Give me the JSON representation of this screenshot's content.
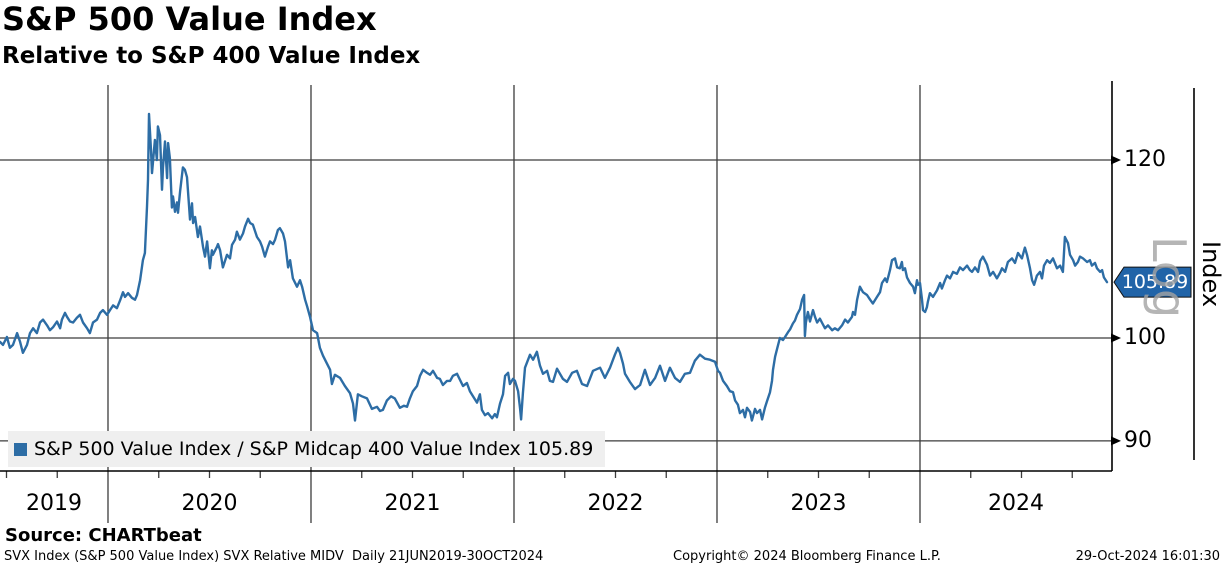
{
  "header": {
    "title": "S&P 500 Value Index",
    "subtitle": "Relative to S&P 400 Value Index"
  },
  "legend": {
    "label": "S&P 500 Value Index / S&P Midcap 400 Value Index 105.89"
  },
  "y_axis": {
    "title": "Index",
    "scale_label": "Log",
    "tick_labels": [
      "120",
      "100",
      "90"
    ],
    "badge": "105.89"
  },
  "x_axis": {
    "year_labels": [
      "2019",
      "2020",
      "2021",
      "2022",
      "2023",
      "2024"
    ]
  },
  "footer": {
    "source": "Source: CHARTbeat",
    "left": "SVX Index (S&P 500 Value Index) SVX Relative MIDV  Daily 21JUN2019-30OCT2024",
    "center": "Copyright© 2024 Bloomberg Finance L.P.",
    "right": "29-Oct-2024 16:01:30"
  },
  "colors": {
    "line": "#2d6da5",
    "badge": "#2164a8",
    "legend_bg": "#efefef",
    "grid": "#3c3c3c",
    "axis": "#000000",
    "watermark": "#a3a3a3"
  },
  "chart_data": {
    "type": "line",
    "title": "S&P 500 Value Index Relative to S&P 400 Value Index",
    "series_name": "S&P 500 Value Index / S&P Midcap 400 Value Index",
    "last_value": 105.89,
    "date_range": "21JUN2019-30OCT2024",
    "y_scale": "log",
    "ylabel": "Index",
    "y_ticks": [
      120,
      100,
      90
    ],
    "x_years": [
      2019,
      2020,
      2021,
      2022,
      2023,
      2024
    ],
    "x_domain": [
      2019.468,
      2024.921
    ],
    "points": [
      [
        2019.468,
        99.6
      ],
      [
        2019.483,
        99.3
      ],
      [
        2019.502,
        100.1
      ],
      [
        2019.517,
        99.0
      ],
      [
        2019.532,
        99.3
      ],
      [
        2019.552,
        100.5
      ],
      [
        2019.567,
        99.6
      ],
      [
        2019.581,
        98.5
      ],
      [
        2019.601,
        99.3
      ],
      [
        2019.616,
        100.5
      ],
      [
        2019.631,
        101.0
      ],
      [
        2019.65,
        100.5
      ],
      [
        2019.665,
        101.6
      ],
      [
        2019.68,
        101.9
      ],
      [
        2019.7,
        101.3
      ],
      [
        2019.714,
        100.8
      ],
      [
        2019.729,
        101.1
      ],
      [
        2019.749,
        101.7
      ],
      [
        2019.764,
        101.0
      ],
      [
        2019.773,
        101.9
      ],
      [
        2019.788,
        102.6
      ],
      [
        2019.798,
        102.2
      ],
      [
        2019.813,
        101.7
      ],
      [
        2019.828,
        101.6
      ],
      [
        2019.847,
        102.1
      ],
      [
        2019.862,
        102.4
      ],
      [
        2019.877,
        101.6
      ],
      [
        2019.897,
        101.0
      ],
      [
        2019.911,
        100.5
      ],
      [
        2019.926,
        101.6
      ],
      [
        2019.946,
        101.9
      ],
      [
        2019.961,
        102.6
      ],
      [
        2019.975,
        102.9
      ],
      [
        2019.995,
        102.4
      ],
      [
        2020.01,
        102.9
      ],
      [
        2020.025,
        103.4
      ],
      [
        2020.044,
        103.1
      ],
      [
        2020.059,
        103.9
      ],
      [
        2020.074,
        104.8
      ],
      [
        2020.084,
        104.3
      ],
      [
        2020.099,
        104.7
      ],
      [
        2020.118,
        104.2
      ],
      [
        2020.133,
        104.0
      ],
      [
        2020.143,
        104.5
      ],
      [
        2020.158,
        106.1
      ],
      [
        2020.172,
        108.3
      ],
      [
        2020.182,
        109.1
      ],
      [
        2020.192,
        114.4
      ],
      [
        2020.197,
        117.6
      ],
      [
        2020.202,
        125.8
      ],
      [
        2020.212,
        121.2
      ],
      [
        2020.217,
        118.4
      ],
      [
        2020.231,
        122.5
      ],
      [
        2020.241,
        120.0
      ],
      [
        2020.246,
        124.2
      ],
      [
        2020.256,
        123.1
      ],
      [
        2020.266,
        116.4
      ],
      [
        2020.271,
        119.1
      ],
      [
        2020.281,
        122.3
      ],
      [
        2020.291,
        117.8
      ],
      [
        2020.296,
        122.1
      ],
      [
        2020.305,
        120.2
      ],
      [
        2020.315,
        114.3
      ],
      [
        2020.32,
        115.6
      ],
      [
        2020.33,
        113.8
      ],
      [
        2020.34,
        114.9
      ],
      [
        2020.345,
        113.7
      ],
      [
        2020.355,
        116.2
      ],
      [
        2020.369,
        119.1
      ],
      [
        2020.379,
        118.8
      ],
      [
        2020.389,
        117.9
      ],
      [
        2020.404,
        112.9
      ],
      [
        2020.414,
        114.8
      ],
      [
        2020.419,
        112.5
      ],
      [
        2020.429,
        113.2
      ],
      [
        2020.443,
        110.9
      ],
      [
        2020.453,
        112.1
      ],
      [
        2020.468,
        109.8
      ],
      [
        2020.478,
        108.7
      ],
      [
        2020.488,
        110.4
      ],
      [
        2020.502,
        107.4
      ],
      [
        2020.512,
        109.4
      ],
      [
        2020.517,
        108.9
      ],
      [
        2020.537,
        109.8
      ],
      [
        2020.542,
        110.1
      ],
      [
        2020.552,
        109.4
      ],
      [
        2020.566,
        107.5
      ],
      [
        2020.586,
        108.9
      ],
      [
        2020.601,
        108.5
      ],
      [
        2020.611,
        110.0
      ],
      [
        2020.626,
        110.6
      ],
      [
        2020.635,
        111.5
      ],
      [
        2020.65,
        110.6
      ],
      [
        2020.665,
        111.3
      ],
      [
        2020.675,
        112.1
      ],
      [
        2020.69,
        113.0
      ],
      [
        2020.7,
        112.5
      ],
      [
        2020.714,
        112.3
      ],
      [
        2020.734,
        110.9
      ],
      [
        2020.749,
        110.4
      ],
      [
        2020.759,
        109.8
      ],
      [
        2020.773,
        108.7
      ],
      [
        2020.788,
        109.8
      ],
      [
        2020.798,
        110.4
      ],
      [
        2020.813,
        110.1
      ],
      [
        2020.823,
        110.6
      ],
      [
        2020.837,
        111.7
      ],
      [
        2020.847,
        111.9
      ],
      [
        2020.862,
        111.3
      ],
      [
        2020.872,
        110.4
      ],
      [
        2020.887,
        107.5
      ],
      [
        2020.897,
        108.3
      ],
      [
        2020.911,
        106.3
      ],
      [
        2020.931,
        105.4
      ],
      [
        2020.946,
        106.1
      ],
      [
        2020.956,
        105.4
      ],
      [
        2020.971,
        104.0
      ],
      [
        2020.981,
        103.3
      ],
      [
        2020.995,
        102.2
      ],
      [
        2021.01,
        100.8
      ],
      [
        2021.03,
        100.5
      ],
      [
        2021.044,
        99.0
      ],
      [
        2021.059,
        98.2
      ],
      [
        2021.074,
        97.6
      ],
      [
        2021.094,
        96.8
      ],
      [
        2021.103,
        95.4
      ],
      [
        2021.118,
        96.3
      ],
      [
        2021.143,
        96.0
      ],
      [
        2021.167,
        95.2
      ],
      [
        2021.192,
        94.5
      ],
      [
        2021.207,
        93.5
      ],
      [
        2021.217,
        91.9
      ],
      [
        2021.231,
        94.4
      ],
      [
        2021.251,
        94.2
      ],
      [
        2021.276,
        94.0
      ],
      [
        2021.3,
        93.0
      ],
      [
        2021.325,
        93.2
      ],
      [
        2021.34,
        92.8
      ],
      [
        2021.354,
        92.9
      ],
      [
        2021.374,
        93.8
      ],
      [
        2021.394,
        94.2
      ],
      [
        2021.413,
        94.0
      ],
      [
        2021.438,
        93.1
      ],
      [
        2021.458,
        93.3
      ],
      [
        2021.473,
        93.2
      ],
      [
        2021.487,
        94.0
      ],
      [
        2021.502,
        94.7
      ],
      [
        2021.522,
        95.2
      ],
      [
        2021.537,
        96.2
      ],
      [
        2021.552,
        96.8
      ],
      [
        2021.571,
        96.5
      ],
      [
        2021.586,
        96.3
      ],
      [
        2021.601,
        96.7
      ],
      [
        2021.621,
        96.0
      ],
      [
        2021.635,
        95.9
      ],
      [
        2021.65,
        95.3
      ],
      [
        2021.67,
        95.7
      ],
      [
        2021.685,
        95.7
      ],
      [
        2021.699,
        96.2
      ],
      [
        2021.719,
        96.4
      ],
      [
        2021.734,
        95.8
      ],
      [
        2021.749,
        95.2
      ],
      [
        2021.768,
        95.5
      ],
      [
        2021.783,
        94.7
      ],
      [
        2021.798,
        94.2
      ],
      [
        2021.818,
        93.6
      ],
      [
        2021.832,
        94.4
      ],
      [
        2021.842,
        92.9
      ],
      [
        2021.857,
        92.4
      ],
      [
        2021.872,
        92.6
      ],
      [
        2021.892,
        92.1
      ],
      [
        2021.906,
        92.5
      ],
      [
        2021.916,
        92.2
      ],
      [
        2021.931,
        93.5
      ],
      [
        2021.946,
        94.4
      ],
      [
        2021.956,
        96.2
      ],
      [
        2021.971,
        96.5
      ],
      [
        2021.98,
        95.4
      ],
      [
        2021.995,
        95.9
      ],
      [
        2022.005,
        95.7
      ],
      [
        2022.02,
        94.7
      ],
      [
        2022.03,
        93.0
      ],
      [
        2022.035,
        92.0
      ],
      [
        2022.044,
        94.5
      ],
      [
        2022.054,
        97.0
      ],
      [
        2022.079,
        98.3
      ],
      [
        2022.094,
        97.8
      ],
      [
        2022.113,
        98.6
      ],
      [
        2022.128,
        97.2
      ],
      [
        2022.143,
        96.4
      ],
      [
        2022.163,
        96.7
      ],
      [
        2022.177,
        95.7
      ],
      [
        2022.192,
        95.6
      ],
      [
        2022.212,
        96.9
      ],
      [
        2022.241,
        95.9
      ],
      [
        2022.261,
        95.6
      ],
      [
        2022.286,
        96.5
      ],
      [
        2022.31,
        96.7
      ],
      [
        2022.335,
        95.4
      ],
      [
        2022.36,
        95.2
      ],
      [
        2022.389,
        96.7
      ],
      [
        2022.424,
        97.0
      ],
      [
        2022.448,
        96.0
      ],
      [
        2022.473,
        97.0
      ],
      [
        2022.497,
        98.3
      ],
      [
        2022.512,
        99.0
      ],
      [
        2022.522,
        98.5
      ],
      [
        2022.537,
        97.4
      ],
      [
        2022.547,
        96.4
      ],
      [
        2022.571,
        95.6
      ],
      [
        2022.596,
        94.9
      ],
      [
        2022.621,
        95.3
      ],
      [
        2022.645,
        96.8
      ],
      [
        2022.67,
        95.3
      ],
      [
        2022.695,
        96.0
      ],
      [
        2022.719,
        97.2
      ],
      [
        2022.744,
        95.7
      ],
      [
        2022.768,
        97.0
      ],
      [
        2022.793,
        96.0
      ],
      [
        2022.818,
        95.6
      ],
      [
        2022.842,
        96.4
      ],
      [
        2022.867,
        96.5
      ],
      [
        2022.891,
        97.7
      ],
      [
        2022.916,
        98.3
      ],
      [
        2022.941,
        97.9
      ],
      [
        2022.965,
        97.8
      ],
      [
        2022.99,
        97.6
      ],
      [
        2023.005,
        96.7
      ],
      [
        2023.015,
        96.5
      ],
      [
        2023.03,
        95.7
      ],
      [
        2023.049,
        95.2
      ],
      [
        2023.064,
        94.7
      ],
      [
        2023.079,
        94.6
      ],
      [
        2023.089,
        93.8
      ],
      [
        2023.103,
        93.4
      ],
      [
        2023.113,
        92.6
      ],
      [
        2023.128,
        92.9
      ],
      [
        2023.138,
        92.2
      ],
      [
        2023.148,
        93.1
      ],
      [
        2023.163,
        92.7
      ],
      [
        2023.172,
        91.9
      ],
      [
        2023.187,
        93.0
      ],
      [
        2023.197,
        92.6
      ],
      [
        2023.212,
        92.9
      ],
      [
        2023.222,
        92.0
      ],
      [
        2023.236,
        93.1
      ],
      [
        2023.246,
        93.7
      ],
      [
        2023.261,
        94.6
      ],
      [
        2023.271,
        95.7
      ],
      [
        2023.276,
        96.8
      ],
      [
        2023.286,
        98.1
      ],
      [
        2023.296,
        98.9
      ],
      [
        2023.31,
        100.0
      ],
      [
        2023.325,
        99.8
      ],
      [
        2023.335,
        100.1
      ],
      [
        2023.35,
        100.6
      ],
      [
        2023.36,
        100.9
      ],
      [
        2023.374,
        101.5
      ],
      [
        2023.384,
        101.8
      ],
      [
        2023.394,
        102.4
      ],
      [
        2023.409,
        103.0
      ],
      [
        2023.419,
        104.0
      ],
      [
        2023.429,
        104.5
      ],
      [
        2023.433,
        100.2
      ],
      [
        2023.438,
        101.6
      ],
      [
        2023.448,
        102.7
      ],
      [
        2023.458,
        101.7
      ],
      [
        2023.473,
        102.9
      ],
      [
        2023.483,
        102.2
      ],
      [
        2023.493,
        101.6
      ],
      [
        2023.507,
        102.0
      ],
      [
        2023.517,
        101.6
      ],
      [
        2023.532,
        101.0
      ],
      [
        2023.547,
        101.3
      ],
      [
        2023.567,
        100.8
      ],
      [
        2023.581,
        101.0
      ],
      [
        2023.596,
        100.8
      ],
      [
        2023.616,
        101.3
      ],
      [
        2023.631,
        101.9
      ],
      [
        2023.645,
        101.6
      ],
      [
        2023.665,
        102.2
      ],
      [
        2023.67,
        102.7
      ],
      [
        2023.68,
        102.4
      ],
      [
        2023.69,
        104.0
      ],
      [
        2023.704,
        105.4
      ],
      [
        2023.719,
        104.8
      ],
      [
        2023.739,
        104.5
      ],
      [
        2023.754,
        104.0
      ],
      [
        2023.768,
        103.6
      ],
      [
        2023.788,
        104.3
      ],
      [
        2023.803,
        104.8
      ],
      [
        2023.813,
        105.8
      ],
      [
        2023.828,
        106.3
      ],
      [
        2023.837,
        105.9
      ],
      [
        2023.852,
        107.2
      ],
      [
        2023.862,
        108.3
      ],
      [
        2023.877,
        108.5
      ],
      [
        2023.887,
        107.5
      ],
      [
        2023.901,
        107.4
      ],
      [
        2023.911,
        108.1
      ],
      [
        2023.916,
        107.2
      ],
      [
        2023.926,
        107.4
      ],
      [
        2023.936,
        106.4
      ],
      [
        2023.951,
        105.8
      ],
      [
        2023.966,
        105.4
      ],
      [
        2023.975,
        104.7
      ],
      [
        2023.985,
        106.1
      ],
      [
        2023.99,
        105.6
      ],
      [
        2024.0,
        105.8
      ],
      [
        2024.01,
        104.0
      ],
      [
        2024.015,
        102.9
      ],
      [
        2024.025,
        102.7
      ],
      [
        2024.034,
        103.2
      ],
      [
        2024.039,
        103.8
      ],
      [
        2024.049,
        104.7
      ],
      [
        2024.064,
        104.3
      ],
      [
        2024.084,
        105.0
      ],
      [
        2024.099,
        105.8
      ],
      [
        2024.108,
        105.2
      ],
      [
        2024.123,
        106.1
      ],
      [
        2024.133,
        106.6
      ],
      [
        2024.148,
        106.3
      ],
      [
        2024.163,
        107.0
      ],
      [
        2024.182,
        106.8
      ],
      [
        2024.197,
        107.5
      ],
      [
        2024.212,
        107.2
      ],
      [
        2024.232,
        107.7
      ],
      [
        2024.246,
        107.2
      ],
      [
        2024.256,
        107.0
      ],
      [
        2024.271,
        107.5
      ],
      [
        2024.286,
        107.0
      ],
      [
        2024.296,
        108.2
      ],
      [
        2024.31,
        108.7
      ],
      [
        2024.33,
        107.8
      ],
      [
        2024.345,
        106.6
      ],
      [
        2024.36,
        107.0
      ],
      [
        2024.379,
        106.3
      ],
      [
        2024.394,
        106.9
      ],
      [
        2024.404,
        107.4
      ],
      [
        2024.419,
        107.0
      ],
      [
        2024.433,
        108.1
      ],
      [
        2024.453,
        108.5
      ],
      [
        2024.468,
        108.0
      ],
      [
        2024.483,
        109.1
      ],
      [
        2024.502,
        108.5
      ],
      [
        2024.517,
        109.7
      ],
      [
        2024.527,
        108.9
      ],
      [
        2024.542,
        107.4
      ],
      [
        2024.552,
        106.1
      ],
      [
        2024.562,
        105.6
      ],
      [
        2024.576,
        106.6
      ],
      [
        2024.591,
        107.0
      ],
      [
        2024.601,
        106.3
      ],
      [
        2024.611,
        107.7
      ],
      [
        2024.626,
        108.3
      ],
      [
        2024.64,
        108.0
      ],
      [
        2024.655,
        108.5
      ],
      [
        2024.675,
        107.4
      ],
      [
        2024.69,
        107.7
      ],
      [
        2024.704,
        107.0
      ],
      [
        2024.714,
        110.9
      ],
      [
        2024.729,
        110.2
      ],
      [
        2024.739,
        108.9
      ],
      [
        2024.754,
        108.3
      ],
      [
        2024.764,
        107.7
      ],
      [
        2024.778,
        108.1
      ],
      [
        2024.788,
        108.7
      ],
      [
        2024.803,
        108.5
      ],
      [
        2024.823,
        108.1
      ],
      [
        2024.837,
        108.3
      ],
      [
        2024.847,
        107.7
      ],
      [
        2024.862,
        108.0
      ],
      [
        2024.872,
        107.4
      ],
      [
        2024.887,
        107.0
      ],
      [
        2024.897,
        107.2
      ],
      [
        2024.906,
        106.4
      ],
      [
        2024.921,
        105.89
      ]
    ]
  }
}
